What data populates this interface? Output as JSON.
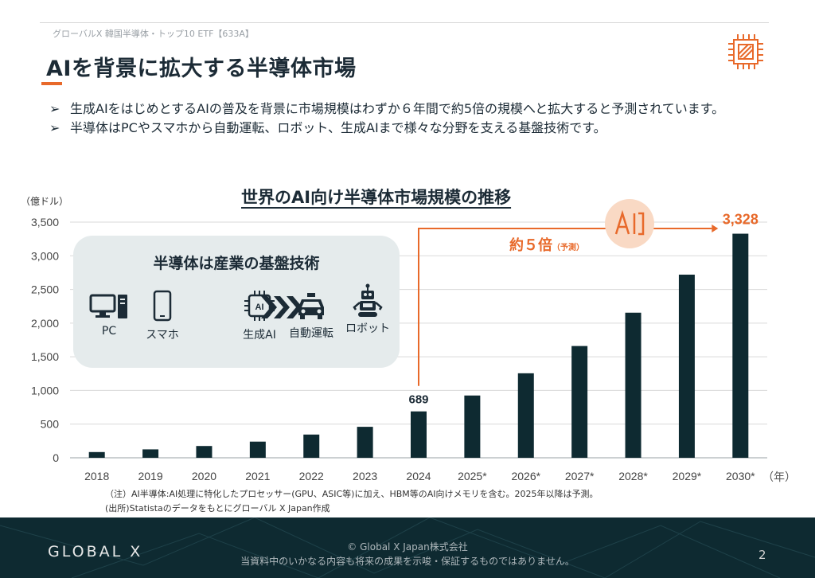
{
  "header": {
    "subtitle": "グローバルX 韓国半導体・トップ10 ETF【633A】",
    "title": "AIを背景に拡大する半導体市場"
  },
  "bullets": [
    {
      "marker": "➢",
      "text": "生成AIをはじめとするAIの普及を背景に市場規模はわずか６年間で約5倍の規模へと拡大すると予測されています。"
    },
    {
      "marker": "➢",
      "text": "半導体はPCやスマホから自動運転、ロボット、生成AIまで様々な分野を支える基盤技術です。"
    }
  ],
  "panel": {
    "title": "半導体は産業の基盤技術",
    "items": [
      {
        "icon": "pc-icon",
        "label": "PC"
      },
      {
        "icon": "smartphone-icon",
        "label": "スマホ"
      },
      {
        "icon": "ai-chip-icon",
        "label": "生成AI"
      },
      {
        "icon": "car-icon",
        "label": "自動運転"
      },
      {
        "icon": "robot-icon",
        "label": "ロボット"
      }
    ]
  },
  "annotation": {
    "growth_main": "約５倍",
    "growth_note": "（予測）",
    "badge_icon": "ai-icon"
  },
  "chart_data": {
    "type": "bar",
    "title": "世界のAI向け半導体市場規模の推移",
    "ylabel": "（億ドル）",
    "xlabel": "（年）",
    "categories": [
      "2018",
      "2019",
      "2020",
      "2021",
      "2022",
      "2023",
      "2024",
      "2025*",
      "2026*",
      "2027*",
      "2028*",
      "2029*",
      "2030*"
    ],
    "values": [
      85,
      125,
      175,
      240,
      345,
      460,
      689,
      925,
      1255,
      1660,
      2155,
      2720,
      3328
    ],
    "ylim": [
      0,
      3500
    ],
    "yticks": [
      0,
      500,
      1000,
      1500,
      2000,
      2500,
      3000,
      3500
    ],
    "ytick_labels": [
      "0",
      "500",
      "1,000",
      "1,500",
      "2,000",
      "2,500",
      "3,000",
      "3,500"
    ],
    "data_labels": [
      {
        "category": "2024",
        "text": "689"
      },
      {
        "category": "2030*",
        "text": "3,328"
      }
    ],
    "grid": true,
    "bar_color": "#0e2a31",
    "accent_color": "#e8692a"
  },
  "notes": [
    "（注）AI半導体:AI処理に特化したプロセッサー(GPU、ASIC等)に加え、HBM等のAI向けメモリを含む。2025年以降は予測。",
    "(出所)Statistaのデータをもとにグローバル X Japan作成"
  ],
  "footer": {
    "logo": "GLOBAL X",
    "copyright": "© Global X Japan株式会社",
    "disclaimer": "当資料中のいかなる内容も将来の成果を示唆・保証するものではありません。",
    "page": "2"
  }
}
